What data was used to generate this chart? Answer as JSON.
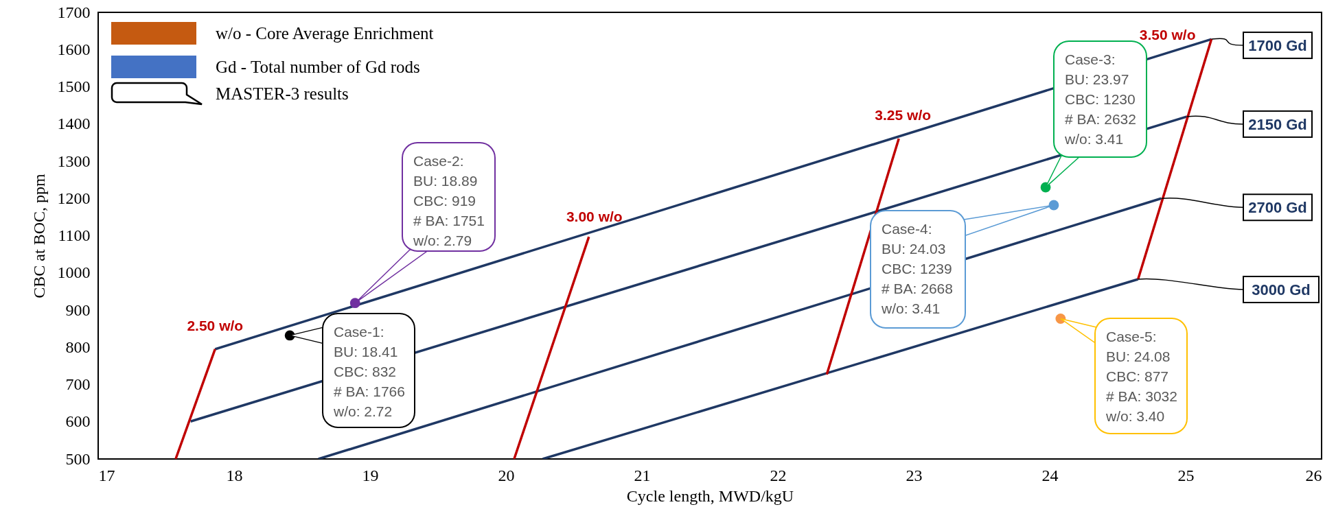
{
  "chart_data": {
    "type": "line",
    "xlabel": "Cycle length, MWD/kgU",
    "ylabel": "CBC at BOC, ppm",
    "xlim": [
      17,
      26
    ],
    "xticks": [
      17,
      18,
      19,
      20,
      21,
      22,
      23,
      24,
      25,
      26
    ],
    "ylim": [
      500,
      1700
    ],
    "yticks": [
      500,
      600,
      700,
      800,
      900,
      1000,
      1100,
      1200,
      1300,
      1400,
      1500,
      1600,
      1700
    ],
    "grid": false,
    "line_style": "solid",
    "marker": "none",
    "series": [
      {
        "name": "1700 Gd",
        "color": "#1f3864",
        "x": [
          17.86,
          25.19
        ],
        "values": [
          795,
          1628
        ]
      },
      {
        "name": "2150 Gd",
        "color": "#1f3864",
        "x": [
          17.68,
          25.01
        ],
        "values": [
          601,
          1420
        ]
      },
      {
        "name": "2700 Gd",
        "color": "#1f3864",
        "x": [
          18.62,
          24.82
        ],
        "values": [
          500,
          1200
        ]
      },
      {
        "name": "3000 Gd",
        "color": "#1f3864",
        "x": [
          20.27,
          24.65
        ],
        "values": [
          500,
          983
        ]
      },
      {
        "name": "2.50 w/o",
        "color": "#c00000",
        "x": [
          17.57,
          17.86
        ],
        "values": [
          500,
          795
        ]
      },
      {
        "name": "3.00 w/o",
        "color": "#c00000",
        "x": [
          20.06,
          20.61
        ],
        "values": [
          500,
          1097
        ]
      },
      {
        "name": "3.25 w/o",
        "color": "#c00000",
        "x": [
          22.36,
          22.89
        ],
        "values": [
          727,
          1361
        ]
      },
      {
        "name": "3.50 w/o",
        "color": "#c00000",
        "x": [
          24.65,
          25.19
        ],
        "values": [
          983,
          1628
        ]
      },
      {
        "type": "scatter",
        "marker": "circle",
        "color": "#000000",
        "x": [
          18.41
        ],
        "values": [
          832
        ]
      },
      {
        "type": "scatter",
        "marker": "circle",
        "color": "#7030a0",
        "x": [
          18.89
        ],
        "values": [
          919
        ]
      },
      {
        "type": "scatter",
        "marker": "circle",
        "color": "#00b050",
        "x": [
          23.97
        ],
        "values": [
          1230
        ]
      },
      {
        "type": "scatter",
        "marker": "circle",
        "color": "#5b9bd5",
        "x": [
          24.03
        ],
        "values": [
          1182
        ]
      },
      {
        "type": "scatter",
        "marker": "circle",
        "color": "#f79646",
        "x": [
          24.08
        ],
        "values": [
          877
        ]
      }
    ],
    "annotations": [
      "Case-1:\nBU: 18.41\nCBC: 832\n# BA: 1766\nw/o: 2.72",
      "Case-2:\nBU: 18.89\nCBC: 919\n# BA: 1751\nw/o: 2.79",
      "Case-3:\nBU: 23.97\nCBC: 1230\n# BA: 2632\nw/o: 3.41",
      "Case-4:\nBU: 24.03\nCBC: 1239\n# BA: 2668\nw/o: 3.41",
      "Case-5:\nBU: 24.08\nCBC: 877\n# BA: 3032\nw/o: 3.40",
      "w/o - Core Average Enrichment",
      "Gd - Total number of Gd rods",
      "MASTER-3 results"
    ]
  }
}
